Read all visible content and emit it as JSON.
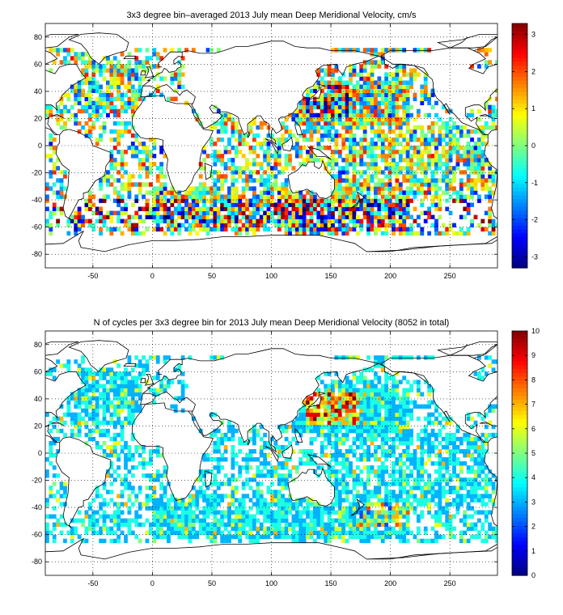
{
  "chart_data": [
    {
      "type": "heatmap",
      "title": "3x3 degree bin–averaged 2013 July mean Deep Meridional Velocity, cm/s",
      "xlabel": "",
      "ylabel": "",
      "xlim": [
        -90,
        290
      ],
      "ylim": [
        -90,
        90
      ],
      "xticks": [
        -50,
        0,
        50,
        100,
        150,
        200,
        250
      ],
      "yticks": [
        80,
        60,
        40,
        20,
        0,
        -20,
        -40,
        -60,
        -80
      ],
      "bin_size_deg": 3,
      "grid": "dotted",
      "colormap": "jet",
      "colorbar": {
        "range": [
          -3.3,
          3.3
        ],
        "ticks": [
          3,
          2,
          1,
          0,
          -1,
          -2,
          -3
        ]
      },
      "field": "mean_velocity"
    },
    {
      "type": "heatmap",
      "title": "N of cycles per 3x3 degree bin for 2013 July mean Deep Meridional Velocity (8052 in total)",
      "xlabel": "",
      "ylabel": "",
      "xlim": [
        -90,
        290
      ],
      "ylim": [
        -90,
        90
      ],
      "xticks": [
        -50,
        0,
        50,
        100,
        150,
        200,
        250
      ],
      "yticks": [
        80,
        60,
        40,
        20,
        0,
        -20,
        -40,
        -60,
        -80
      ],
      "bin_size_deg": 3,
      "grid": "dotted",
      "colormap": "jet",
      "colorbar": {
        "range": [
          0,
          10
        ],
        "ticks": [
          10,
          9,
          8,
          7,
          6,
          5,
          4,
          3,
          2,
          1,
          0
        ]
      },
      "field": "cycle_count"
    }
  ]
}
